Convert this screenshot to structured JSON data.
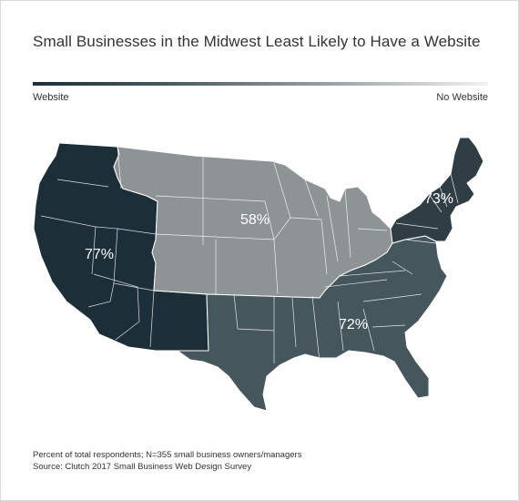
{
  "title": "Small Businesses in the Midwest Least Likely to Have a Website",
  "legend": {
    "left_label": "Website",
    "right_label": "No Website",
    "colors": [
      "#1c2f38",
      "#f2f2f2"
    ]
  },
  "regions": [
    {
      "name": "West",
      "percent_label": "77%",
      "value": 77,
      "color": "#1c2f38"
    },
    {
      "name": "Midwest",
      "percent_label": "58%",
      "value": 58,
      "color": "#8e9396"
    },
    {
      "name": "South",
      "percent_label": "72%",
      "value": 72,
      "color": "#46565d"
    },
    {
      "name": "Northeast",
      "percent_label": "73%",
      "value": 73,
      "color": "#2f3e45"
    }
  ],
  "footnote": {
    "line1": "Percent of total respondents; N=355 small business owners/managers",
    "line2": "Source: Clutch 2017 Small Business Web Design Survey"
  }
}
